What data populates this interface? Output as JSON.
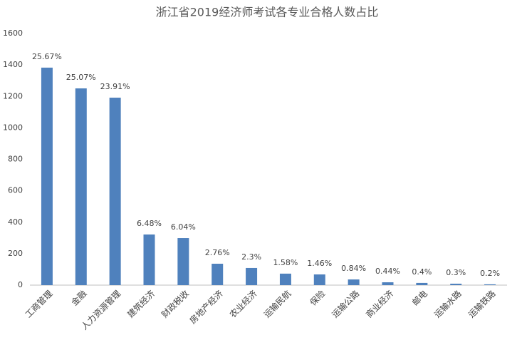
{
  "chart_data": {
    "type": "bar",
    "title": "浙江省2019经济师考试各专业合格人数占比",
    "categories": [
      "工商管理",
      "金融",
      "人力资源管理",
      "建筑经济",
      "财政税收",
      "房地产经济",
      "农业经济",
      "运输民航",
      "保险",
      "运输公路",
      "商业经济",
      "邮电",
      "运输水路",
      "运输铁路"
    ],
    "values": [
      1383,
      1251,
      1192,
      322,
      299,
      136,
      109,
      73,
      68,
      36,
      18,
      14,
      9,
      5
    ],
    "data_labels": [
      "25.67%",
      "25.07%",
      "23.91%",
      "6.48%",
      "6.04%",
      "2.76%",
      "2.3%",
      "1.58%",
      "1.46%",
      "0.84%",
      "0.44%",
      "0.4%",
      "0.3%",
      "0.2%"
    ],
    "color": "#4f81bd",
    "ylim": [
      0,
      1600
    ],
    "yticks": [
      0,
      200,
      400,
      600,
      800,
      1000,
      1200,
      1400,
      1600
    ],
    "grid": false
  }
}
